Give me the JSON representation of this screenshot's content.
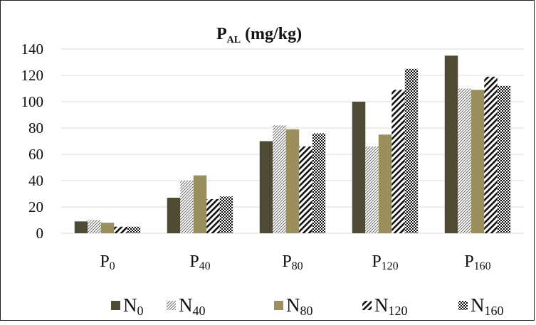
{
  "chart_data": {
    "type": "bar",
    "title": {
      "main": "P",
      "sub": "AL",
      "tail": " (mg/kg)"
    },
    "xlabel": "",
    "ylabel": "",
    "ylim": [
      0,
      140
    ],
    "yticks": [
      "0",
      "20",
      "40",
      "60",
      "80",
      "100",
      "120",
      "140"
    ],
    "categories": [
      {
        "main": "P",
        "sub": "0"
      },
      {
        "main": "P",
        "sub": "40"
      },
      {
        "main": "P",
        "sub": "80"
      },
      {
        "main": "P",
        "sub": "120"
      },
      {
        "main": "P",
        "sub": "160"
      }
    ],
    "series": [
      {
        "name": {
          "main": "N",
          "sub": "0"
        },
        "pattern": "solid-dark",
        "values": [
          9,
          27,
          70,
          100,
          135
        ]
      },
      {
        "name": {
          "main": "N",
          "sub": "40"
        },
        "pattern": "light-diagonal-hatch",
        "values": [
          10,
          40,
          82,
          66,
          110
        ]
      },
      {
        "name": {
          "main": "N",
          "sub": "80"
        },
        "pattern": "solid-olive",
        "values": [
          8,
          44,
          79,
          75,
          109
        ]
      },
      {
        "name": {
          "main": "N",
          "sub": "120"
        },
        "pattern": "wide-diagonal-hatch",
        "values": [
          5,
          26,
          66,
          109,
          119
        ]
      },
      {
        "name": {
          "main": "N",
          "sub": "160"
        },
        "pattern": "checker",
        "values": [
          5,
          28,
          76,
          125,
          112
        ]
      }
    ],
    "colors": {
      "dark": "#4f4a33",
      "olive": "#9b8f5e"
    },
    "grid": true,
    "legend_position": "bottom"
  }
}
